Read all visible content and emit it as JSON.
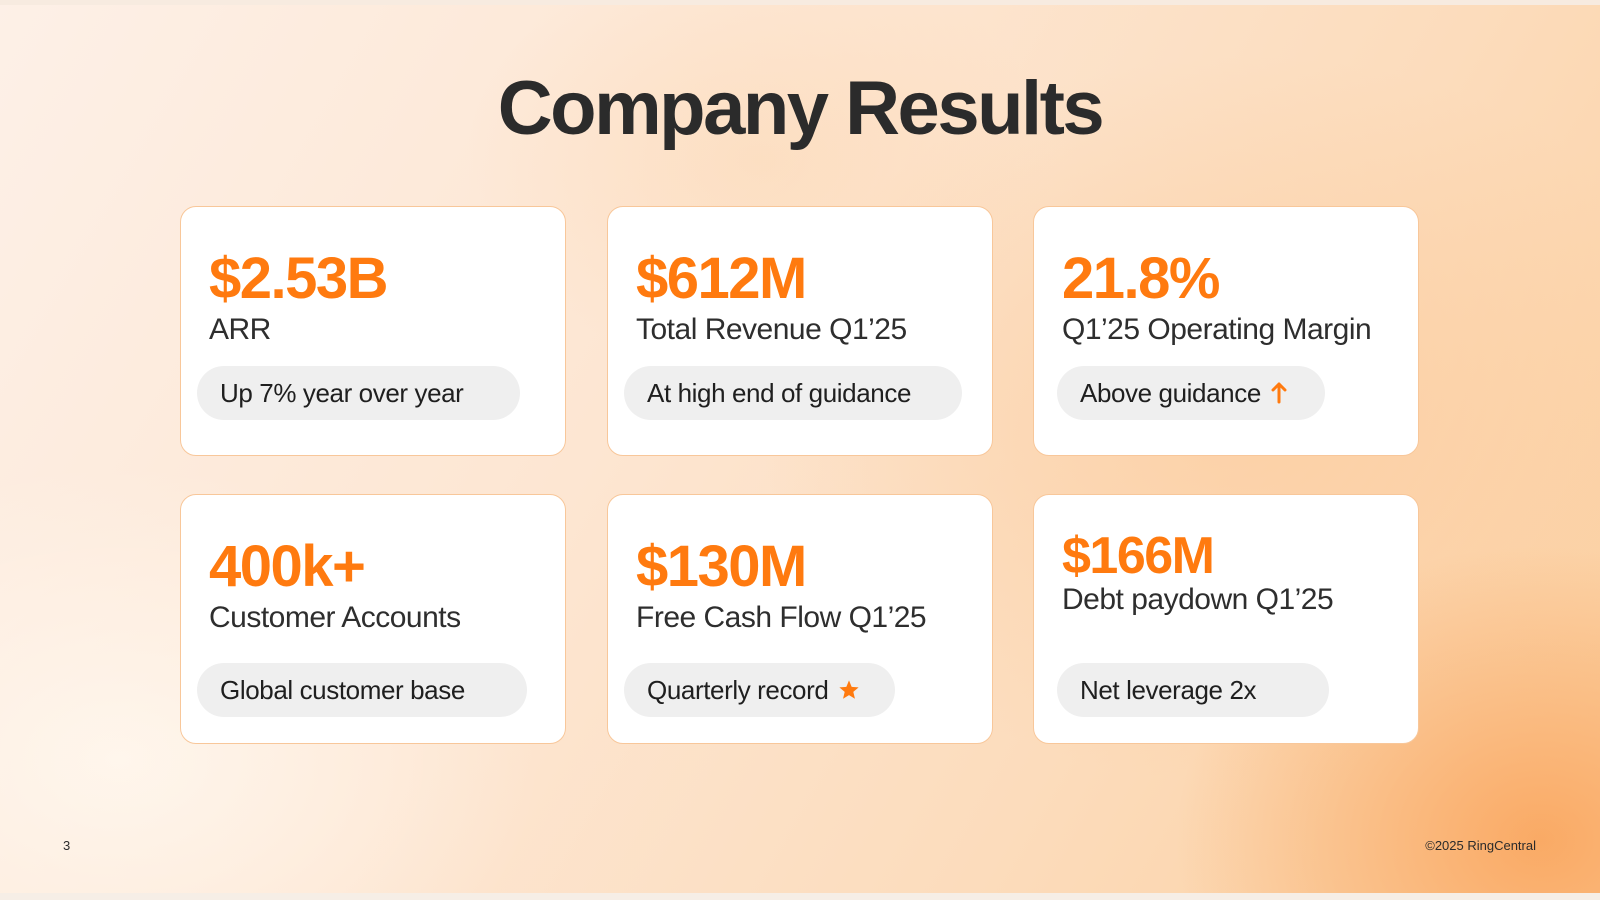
{
  "slide": {
    "title": "Company Results",
    "page_number": "3",
    "copyright": "©2025 RingCentral"
  },
  "colors": {
    "accent": "#ff7a0f",
    "text": "#2b2b2b",
    "card_border": "#f8c79a",
    "pill_bg": "#efefef"
  },
  "cards": [
    {
      "value": "$2.53B",
      "label": "ARR",
      "note": "Up 7% year over year",
      "note_icon": ""
    },
    {
      "value": "$612M",
      "label": "Total Revenue Q1’25",
      "note": "At high end of guidance",
      "note_icon": ""
    },
    {
      "value": "21.8%",
      "label": "Q1’25 Operating Margin",
      "note": "Above guidance",
      "note_icon": "arrow-up-icon"
    },
    {
      "value": "400k+",
      "label": "Customer Accounts",
      "note": "Global customer base",
      "note_icon": ""
    },
    {
      "value": "$130M",
      "label": "Free Cash Flow Q1’25",
      "note": "Quarterly record",
      "note_icon": "star-icon"
    },
    {
      "value": "$166M",
      "label": "Debt paydown Q1’25",
      "note": "Net leverage 2x",
      "note_icon": ""
    }
  ]
}
